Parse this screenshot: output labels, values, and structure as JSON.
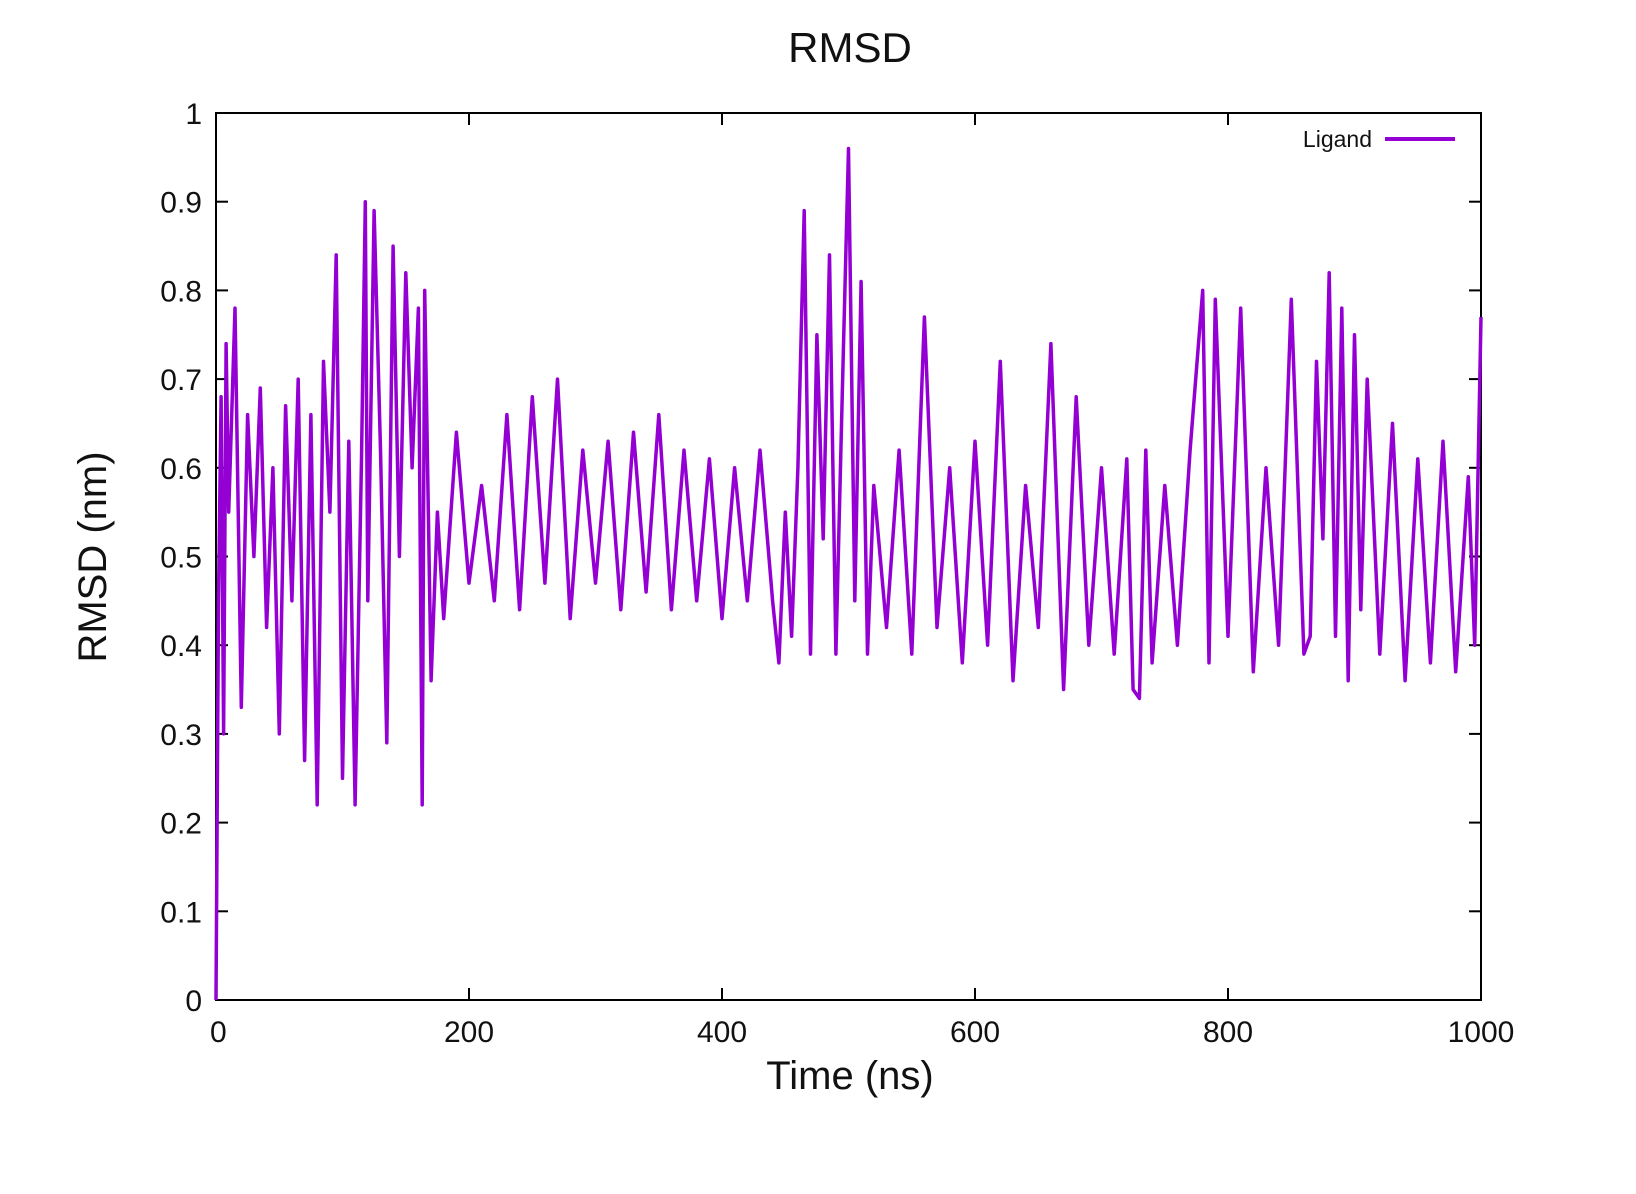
{
  "chart_data": {
    "type": "line",
    "title": "RMSD",
    "xlabel": "Time (ns)",
    "ylabel": "RMSD (nm)",
    "xlim": [
      0,
      1000
    ],
    "ylim": [
      0,
      1
    ],
    "xticks": [
      "0",
      "200",
      "400",
      "600",
      "800",
      "1000"
    ],
    "yticks": [
      "0",
      "0.1",
      "0.2",
      "0.3",
      "0.4",
      "0.5",
      "0.6",
      "0.7",
      "0.8",
      "0.9",
      "1"
    ],
    "grid": false,
    "legend_position": "top-right",
    "series": [
      {
        "name": "Ligand",
        "color": "#9400d3",
        "x": [
          0,
          2,
          4,
          6,
          8,
          10,
          15,
          20,
          25,
          30,
          35,
          40,
          45,
          50,
          55,
          60,
          65,
          70,
          75,
          80,
          85,
          90,
          95,
          100,
          105,
          110,
          115,
          118,
          120,
          125,
          130,
          135,
          140,
          145,
          150,
          155,
          160,
          163,
          165,
          170,
          175,
          180,
          190,
          200,
          210,
          220,
          230,
          240,
          250,
          260,
          270,
          280,
          290,
          300,
          310,
          320,
          330,
          340,
          350,
          360,
          370,
          380,
          390,
          400,
          410,
          420,
          430,
          440,
          445,
          450,
          455,
          460,
          465,
          470,
          475,
          480,
          485,
          490,
          495,
          500,
          505,
          510,
          515,
          520,
          530,
          540,
          550,
          560,
          570,
          580,
          590,
          600,
          610,
          620,
          630,
          640,
          650,
          660,
          670,
          680,
          690,
          700,
          710,
          720,
          725,
          730,
          735,
          740,
          750,
          760,
          770,
          780,
          785,
          790,
          800,
          810,
          820,
          830,
          840,
          850,
          860,
          865,
          870,
          875,
          880,
          885,
          890,
          895,
          900,
          905,
          910,
          920,
          930,
          940,
          950,
          960,
          970,
          980,
          990,
          995,
          1000
        ],
        "values": [
          0.0,
          0.45,
          0.68,
          0.3,
          0.74,
          0.55,
          0.78,
          0.33,
          0.66,
          0.5,
          0.69,
          0.42,
          0.6,
          0.3,
          0.67,
          0.45,
          0.7,
          0.27,
          0.66,
          0.22,
          0.72,
          0.55,
          0.84,
          0.25,
          0.63,
          0.22,
          0.61,
          0.9,
          0.45,
          0.89,
          0.62,
          0.29,
          0.85,
          0.5,
          0.82,
          0.6,
          0.78,
          0.22,
          0.8,
          0.36,
          0.55,
          0.43,
          0.64,
          0.47,
          0.58,
          0.45,
          0.66,
          0.44,
          0.68,
          0.47,
          0.7,
          0.43,
          0.62,
          0.47,
          0.63,
          0.44,
          0.64,
          0.46,
          0.66,
          0.44,
          0.62,
          0.45,
          0.61,
          0.43,
          0.6,
          0.45,
          0.62,
          0.45,
          0.38,
          0.55,
          0.41,
          0.6,
          0.89,
          0.39,
          0.75,
          0.52,
          0.84,
          0.39,
          0.68,
          0.96,
          0.45,
          0.81,
          0.39,
          0.58,
          0.42,
          0.62,
          0.39,
          0.77,
          0.42,
          0.6,
          0.38,
          0.63,
          0.4,
          0.72,
          0.36,
          0.58,
          0.42,
          0.74,
          0.35,
          0.68,
          0.4,
          0.6,
          0.39,
          0.61,
          0.35,
          0.34,
          0.62,
          0.38,
          0.58,
          0.4,
          0.62,
          0.8,
          0.38,
          0.79,
          0.41,
          0.78,
          0.37,
          0.6,
          0.4,
          0.79,
          0.39,
          0.41,
          0.72,
          0.52,
          0.82,
          0.41,
          0.78,
          0.36,
          0.75,
          0.44,
          0.7,
          0.39,
          0.65,
          0.36,
          0.61,
          0.38,
          0.63,
          0.37,
          0.59,
          0.4,
          0.77
        ]
      }
    ]
  }
}
